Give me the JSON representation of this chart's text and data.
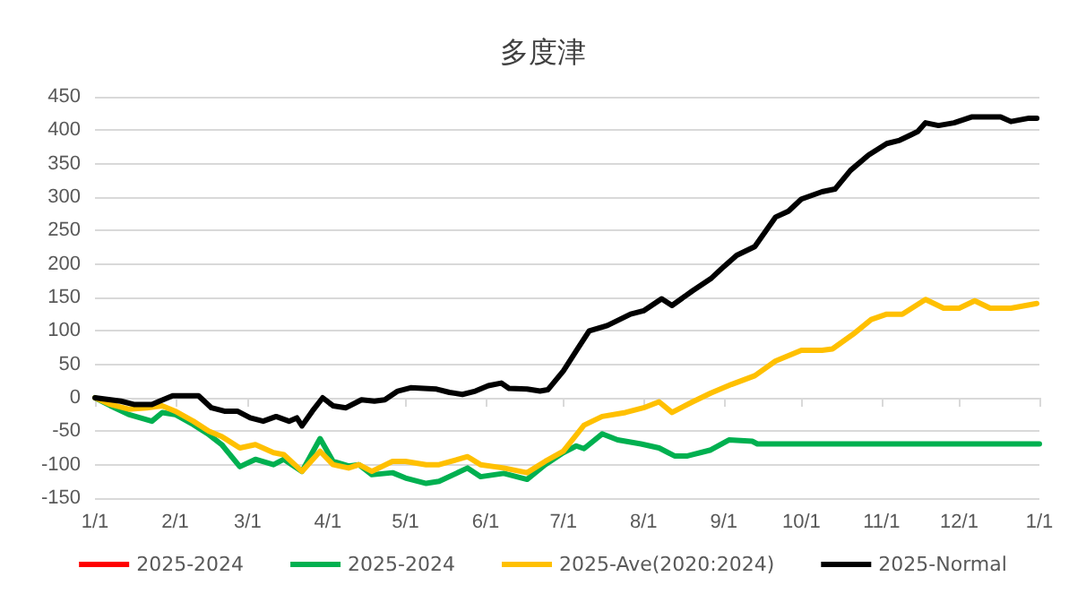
{
  "chart_data": {
    "type": "line",
    "title": "多度津",
    "xlim": [
      "2025-01-01",
      "2026-01-01"
    ],
    "xticks": [
      {
        "value": "2025-01-01",
        "label": "1/1"
      },
      {
        "value": "2025-02-01",
        "label": "2/1"
      },
      {
        "value": "2025-03-01",
        "label": "3/1"
      },
      {
        "value": "2025-04-01",
        "label": "4/1"
      },
      {
        "value": "2025-05-01",
        "label": "5/1"
      },
      {
        "value": "2025-06-01",
        "label": "6/1"
      },
      {
        "value": "2025-07-01",
        "label": "7/1"
      },
      {
        "value": "2025-08-01",
        "label": "8/1"
      },
      {
        "value": "2025-09-01",
        "label": "9/1"
      },
      {
        "value": "2025-10-01",
        "label": "10/1"
      },
      {
        "value": "2025-11-01",
        "label": "11/1"
      },
      {
        "value": "2025-12-01",
        "label": "12/1"
      },
      {
        "value": "2026-01-01",
        "label": "1/1"
      }
    ],
    "ylim": [
      -150,
      450
    ],
    "yticks": [
      -150,
      -100,
      -50,
      0,
      50,
      100,
      150,
      200,
      250,
      300,
      350,
      400,
      450
    ],
    "grid": "y",
    "legend": "bottom",
    "marker": "none",
    "line_style": "solid",
    "series": [
      {
        "name": "2025-2024",
        "color": "#ff0000"
      },
      {
        "name": "2025-2024",
        "color": "#00b050",
        "x": [
          "2025-01-01",
          "2025-01-07",
          "2025-01-14",
          "2025-01-23",
          "2025-01-27",
          "2025-02-01",
          "2025-02-08",
          "2025-02-14",
          "2025-02-19",
          "2025-02-26",
          "2025-03-04",
          "2025-03-11",
          "2025-03-15",
          "2025-03-22",
          "2025-03-29",
          "2025-04-03",
          "2025-04-09",
          "2025-04-13",
          "2025-04-18",
          "2025-04-26",
          "2025-05-01",
          "2025-05-09",
          "2025-05-14",
          "2025-05-25",
          "2025-05-30",
          "2025-06-08",
          "2025-06-17",
          "2025-06-24",
          "2025-07-01",
          "2025-07-06",
          "2025-07-09",
          "2025-07-16",
          "2025-07-22",
          "2025-07-31",
          "2025-08-07",
          "2025-08-13",
          "2025-08-18",
          "2025-08-27",
          "2025-09-03",
          "2025-09-12",
          "2025-09-14",
          "2026-01-01"
        ],
        "values": [
          0,
          -12,
          -25,
          -35,
          -22,
          -25,
          -40,
          -55,
          -70,
          -103,
          -92,
          -100,
          -92,
          -110,
          -61,
          -95,
          -102,
          -100,
          -115,
          -112,
          -120,
          -128,
          -125,
          -105,
          -118,
          -113,
          -122,
          -100,
          -82,
          -72,
          -76,
          -54,
          -63,
          -69,
          -75,
          -87,
          -87,
          -78,
          -63,
          -65,
          -69,
          -69
        ]
      },
      {
        "name": "2025-Ave(2020:2024)",
        "color": "#ffc000",
        "x": [
          "2025-01-01",
          "2025-01-07",
          "2025-01-14",
          "2025-01-21",
          "2025-01-27",
          "2025-02-01",
          "2025-02-08",
          "2025-02-14",
          "2025-02-19",
          "2025-02-26",
          "2025-03-04",
          "2025-03-11",
          "2025-03-15",
          "2025-03-22",
          "2025-03-29",
          "2025-04-03",
          "2025-04-09",
          "2025-04-13",
          "2025-04-18",
          "2025-04-26",
          "2025-05-01",
          "2025-05-09",
          "2025-05-14",
          "2025-05-25",
          "2025-05-30",
          "2025-06-08",
          "2025-06-17",
          "2025-06-24",
          "2025-07-01",
          "2025-07-09",
          "2025-07-16",
          "2025-07-25",
          "2025-08-01",
          "2025-08-07",
          "2025-08-12",
          "2025-08-20",
          "2025-08-27",
          "2025-09-04",
          "2025-09-13",
          "2025-09-21",
          "2025-10-01",
          "2025-10-09",
          "2025-10-13",
          "2025-10-21",
          "2025-10-28",
          "2025-11-03",
          "2025-11-09",
          "2025-11-18",
          "2025-11-25",
          "2025-12-01",
          "2025-12-07",
          "2025-12-13",
          "2025-12-21",
          "2025-12-31"
        ],
        "values": [
          0,
          -10,
          -17,
          -15,
          -12,
          -20,
          -35,
          -50,
          -58,
          -75,
          -70,
          -82,
          -85,
          -110,
          -80,
          -100,
          -105,
          -100,
          -110,
          -95,
          -95,
          -100,
          -100,
          -88,
          -100,
          -105,
          -112,
          -95,
          -80,
          -41,
          -28,
          -22,
          -15,
          -6,
          -22,
          -6,
          7,
          20,
          33,
          55,
          71,
          71,
          73,
          95,
          117,
          125,
          125,
          147,
          134,
          134,
          145,
          134,
          134,
          141
        ]
      },
      {
        "name": "2025-Normal",
        "color": "#000000",
        "x": [
          "2025-01-01",
          "2025-01-11",
          "2025-01-16",
          "2025-01-23",
          "2025-01-26",
          "2025-01-31",
          "2025-02-07",
          "2025-02-10",
          "2025-02-15",
          "2025-02-20",
          "2025-02-25",
          "2025-03-02",
          "2025-03-07",
          "2025-03-12",
          "2025-03-17",
          "2025-03-20",
          "2025-03-22",
          "2025-03-26",
          "2025-03-30",
          "2025-04-03",
          "2025-04-08",
          "2025-04-14",
          "2025-04-19",
          "2025-04-23",
          "2025-04-28",
          "2025-05-03",
          "2025-05-08",
          "2025-05-13",
          "2025-05-18",
          "2025-05-23",
          "2025-05-28",
          "2025-06-02",
          "2025-06-07",
          "2025-06-10",
          "2025-06-17",
          "2025-06-22",
          "2025-06-25",
          "2025-07-01",
          "2025-07-06",
          "2025-07-11",
          "2025-07-18",
          "2025-07-27",
          "2025-08-01",
          "2025-08-08",
          "2025-08-12",
          "2025-08-20",
          "2025-08-27",
          "2025-09-01",
          "2025-09-06",
          "2025-09-13",
          "2025-09-21",
          "2025-09-26",
          "2025-10-01",
          "2025-10-09",
          "2025-10-14",
          "2025-10-20",
          "2025-10-27",
          "2025-11-03",
          "2025-11-08",
          "2025-11-15",
          "2025-11-18",
          "2025-11-23",
          "2025-11-29",
          "2025-12-06",
          "2025-12-17",
          "2025-12-21",
          "2025-12-28",
          "2025-12-31"
        ],
        "values": [
          0,
          -5,
          -10,
          -10,
          -5,
          3,
          3,
          3,
          -15,
          -20,
          -20,
          -30,
          -35,
          -28,
          -35,
          -30,
          -42,
          -20,
          0,
          -12,
          -15,
          -3,
          -5,
          -3,
          10,
          15,
          14,
          13,
          8,
          5,
          10,
          18,
          22,
          14,
          13,
          10,
          12,
          40,
          70,
          100,
          108,
          125,
          130,
          148,
          138,
          160,
          178,
          196,
          213,
          226,
          270,
          279,
          297,
          308,
          312,
          340,
          363,
          380,
          385,
          398,
          411,
          407,
          411,
          420,
          420,
          413,
          418,
          418
        ]
      }
    ]
  }
}
